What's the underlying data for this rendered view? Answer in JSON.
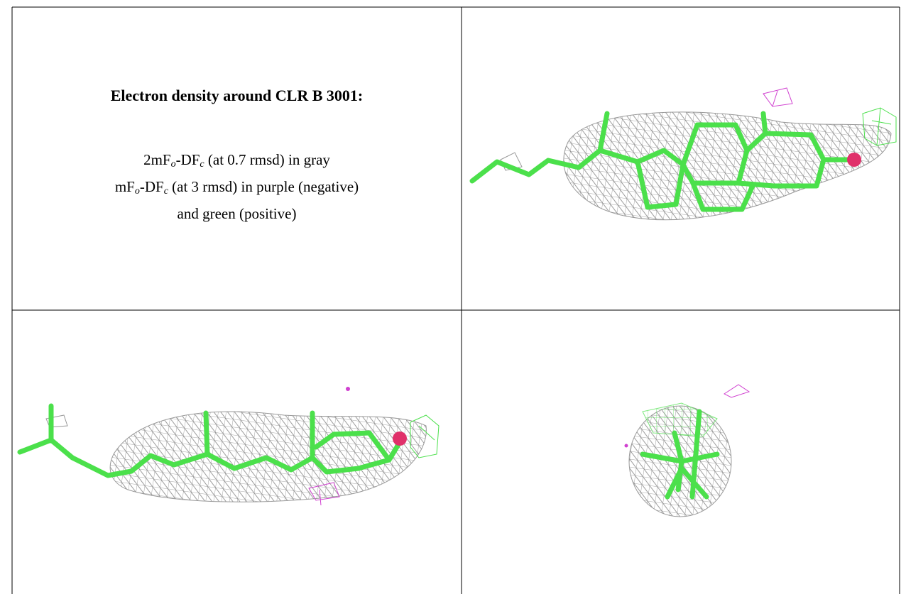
{
  "caption": {
    "title": "Electron density around CLR B 3001:",
    "lines": [
      [
        {
          "text": "2mF"
        },
        {
          "text": "o",
          "sub": true
        },
        {
          "text": "-DF"
        },
        {
          "text": "c",
          "sub": true
        },
        {
          "text": " (at 0.7 rmsd) in gray"
        }
      ],
      [
        {
          "text": "mF"
        },
        {
          "text": "o",
          "sub": true
        },
        {
          "text": "-DF"
        },
        {
          "text": "c",
          "sub": true
        },
        {
          "text": " (at 3 rmsd) in purple (negative)"
        }
      ],
      [
        {
          "text": "and green (positive)"
        }
      ]
    ]
  }
}
